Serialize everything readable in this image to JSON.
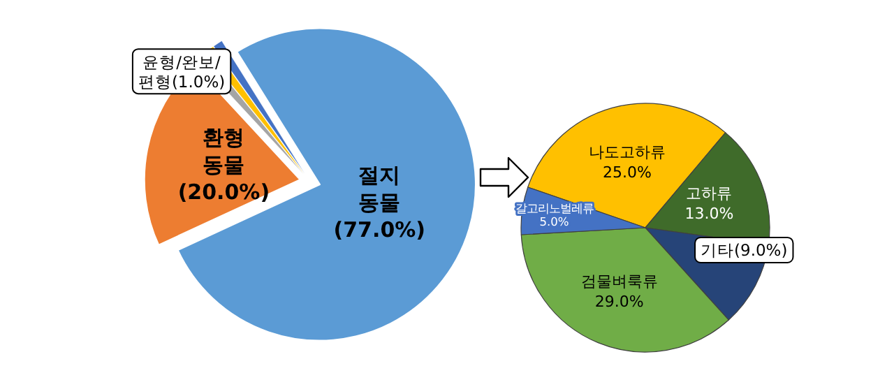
{
  "chart_data": [
    {
      "type": "pie",
      "categories": [
        "절지\n동물",
        "환형\n동물",
        null,
        null,
        "윤형/완보/\n편형"
      ],
      "values": [
        77,
        20,
        1,
        1,
        1
      ],
      "value_labels": [
        "(77.0%)",
        "(20.0%)",
        null,
        null,
        "(1.0%)"
      ],
      "colors": [
        "#5b9bd5",
        "#ed7d31",
        "#a5a5a5",
        "#ffc000",
        "#4472c4"
      ]
    },
    {
      "type": "pie",
      "categories": [
        "나도고하류",
        "고하류",
        "기타",
        "검물벼룩류",
        "갈고리노벌레류"
      ],
      "values": [
        25,
        13,
        9,
        29,
        5
      ],
      "value_labels": [
        "25.0%",
        "13.0%",
        "(9.0%)",
        "29.0%",
        "5.0%"
      ],
      "colors": [
        "#ffc000",
        "#3f6b2a",
        "#264478",
        "#70ad47",
        "#4472c4"
      ]
    }
  ]
}
